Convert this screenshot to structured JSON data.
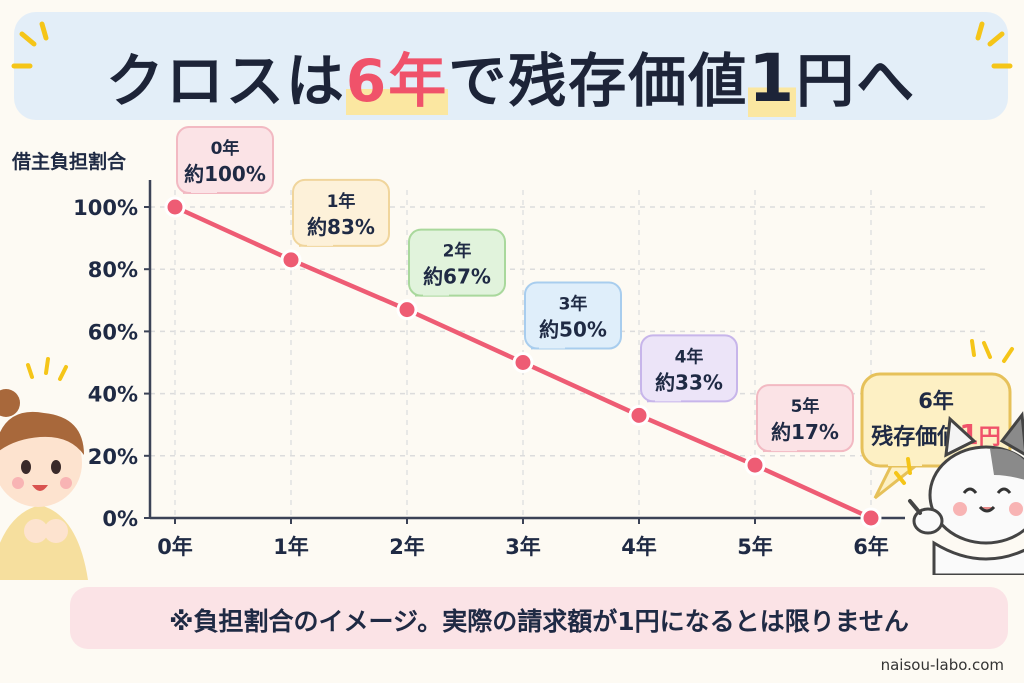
{
  "title": {
    "part1": "クロスは",
    "highlight": "6年",
    "part2": "で残存価値",
    "num": "1",
    "part3": "円へ"
  },
  "chart_data": {
    "type": "line",
    "title": "クロスは6年で残存価値1円へ",
    "ylabel": "借主負担割合",
    "xlabel": "",
    "categories": [
      "0年",
      "1年",
      "2年",
      "3年",
      "4年",
      "5年",
      "6年"
    ],
    "values": [
      100,
      83,
      67,
      50,
      33,
      17,
      0
    ],
    "ylim": [
      0,
      100
    ],
    "yticks": [
      "100%",
      "80%",
      "60%",
      "40%",
      "20%",
      "0%"
    ],
    "ytick_values": [
      100,
      80,
      60,
      40,
      20,
      0
    ],
    "grid": true,
    "line_color": "#ee5c74",
    "callouts": [
      {
        "year": "0年",
        "text": "約100%",
        "fill": "#fbe3e6",
        "stroke": "#f2b9c2"
      },
      {
        "year": "1年",
        "text": "約83%",
        "fill": "#fdf1d9",
        "stroke": "#f0d59c"
      },
      {
        "year": "2年",
        "text": "約67%",
        "fill": "#e1f3dc",
        "stroke": "#a9d89c"
      },
      {
        "year": "3年",
        "text": "約50%",
        "fill": "#dfeefa",
        "stroke": "#a8cdee"
      },
      {
        "year": "4年",
        "text": "約33%",
        "fill": "#ece4f8",
        "stroke": "#c7b5ea"
      },
      {
        "year": "5年",
        "text": "約17%",
        "fill": "#fbe3e6",
        "stroke": "#f2b9c2"
      }
    ],
    "final_callout": {
      "line1": "6年",
      "line2": "残存価値",
      "num": "1",
      "unit": "円"
    }
  },
  "note": "※負担割合のイメージ。実際の請求額が1円になるとは限りません",
  "site": "naisou-labo.com",
  "colors": {
    "accent": "#f0526a",
    "line": "#ee5c74",
    "banner": "#e3eef8",
    "note": "#fbe3e6"
  }
}
